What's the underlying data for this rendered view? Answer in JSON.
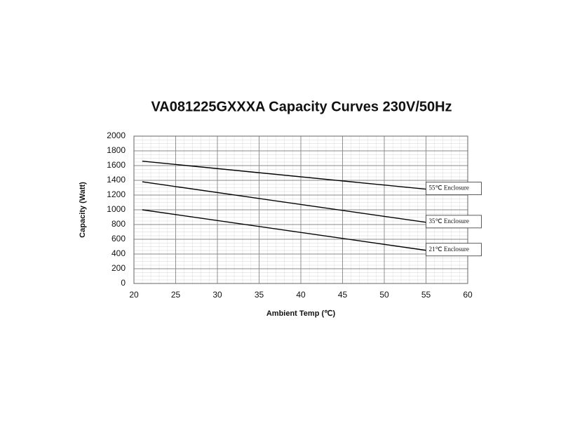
{
  "chart_data": {
    "type": "line",
    "title": "VA081225GXXXA  Capacity Curves 230V/50Hz",
    "x_label": "Ambient Temp (℃)",
    "y_label": "Capacity (Watt)",
    "x": [
      21,
      55
    ],
    "series": [
      {
        "name": "55℃ Enclosure",
        "color": "#000000",
        "values": [
          1660,
          1280
        ]
      },
      {
        "name": "35℃ Enclosure",
        "color": "#000000",
        "values": [
          1380,
          830
        ]
      },
      {
        "name": "21℃ Enclosure",
        "color": "#000000",
        "values": [
          1000,
          450
        ]
      }
    ],
    "xlim": [
      20,
      60
    ],
    "xticks": [
      20,
      25,
      30,
      35,
      40,
      45,
      50,
      55,
      60
    ],
    "ylim": [
      0,
      2000
    ],
    "yticks": [
      0,
      200,
      400,
      600,
      800,
      1000,
      1200,
      1400,
      1600,
      1800,
      2000
    ],
    "grid": true
  }
}
